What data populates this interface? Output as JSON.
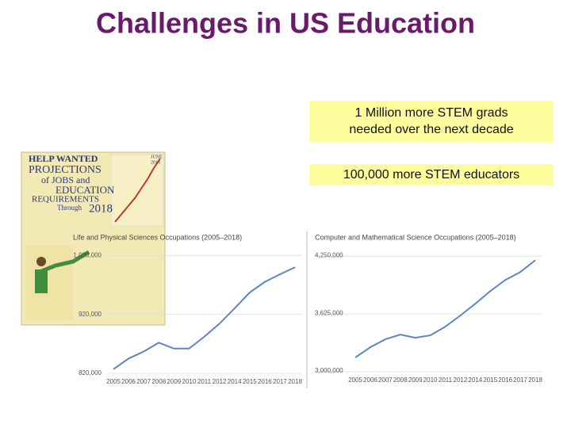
{
  "title": "Challenges in US Education",
  "callouts": [
    "1 Million more STEM grads",
    "needed over the next decade",
    "100,000 more STEM educators"
  ],
  "cover": [
    "HELP WANTED",
    "JUNE",
    "2010",
    "PROJECTIONS",
    "of JOBS and",
    "EDUCATION",
    "REQUIREMENTS",
    "Through",
    "2018"
  ],
  "chart_data": [
    {
      "type": "line",
      "title": "Life and Physical Sciences Occupations (2005–2018)",
      "categories": [
        "2005",
        "2006",
        "2007",
        "2008",
        "2009",
        "2010",
        "2011",
        "2012",
        "2014",
        "2015",
        "2016",
        "2017",
        "2018"
      ],
      "series": [
        {
          "name": "Life and Physical Sciences Occupations",
          "color": "#5b86c5",
          "values": [
            827000,
            845000,
            857000,
            872000,
            862000,
            862000,
            882000,
            904000,
            930000,
            957000,
            975000,
            988000,
            1000000
          ]
        }
      ],
      "ylim": [
        820000,
        1050000
      ],
      "yticks": [
        {
          "value": 820000,
          "label": "820,000"
        },
        {
          "value": 920000,
          "label": "920,000"
        },
        {
          "value": 1020000,
          "label": "1,020,000"
        }
      ],
      "grid": true
    },
    {
      "type": "line",
      "title": "Computer and Mathematical Science Occupations (2005–2018)",
      "categories": [
        "2005",
        "2006",
        "2007",
        "2008",
        "2009",
        "2010",
        "2011",
        "2012",
        "2014",
        "2015",
        "2016",
        "2017",
        "2018"
      ],
      "series": [
        {
          "name": "Computer and Mathematical Science Occupations",
          "color": "#5b86c5",
          "values": [
            3154000,
            3265000,
            3351000,
            3402000,
            3368000,
            3394000,
            3488000,
            3608000,
            3736000,
            3873000,
            3993000,
            4079000,
            4207000
          ]
        }
      ],
      "ylim": [
        3000000,
        4450000
      ],
      "yticks": [
        {
          "value": 3000000,
          "label": "3,000,000"
        },
        {
          "value": 3625000,
          "label": "3,625,000"
        },
        {
          "value": 4250000,
          "label": "4,250,000"
        }
      ],
      "grid": true
    }
  ]
}
